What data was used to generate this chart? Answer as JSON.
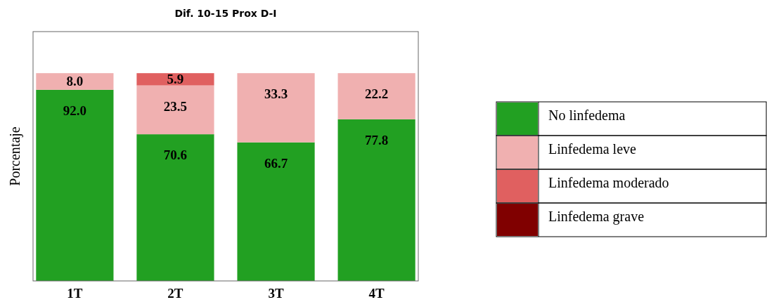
{
  "chart_data": {
    "type": "bar",
    "title": "Dif. 10-15 Prox D-I",
    "ylabel": "Porcentaje",
    "categories": [
      "1T",
      "2T",
      "3T",
      "4T"
    ],
    "stacked": true,
    "ylim": [
      0,
      120
    ],
    "tick_labels": "x",
    "legend": "right",
    "grid": false,
    "series": [
      {
        "name": "No linfedema",
        "color": "#22a022",
        "values": [
          92.0,
          70.6,
          66.7,
          77.8
        ],
        "value_labels": [
          "92.0",
          "70.6",
          "66.7",
          "77.8"
        ]
      },
      {
        "name": "Linfedema leve",
        "color": "#f0b0b0",
        "values": [
          8.0,
          23.5,
          33.3,
          22.2
        ],
        "value_labels": [
          "8.0",
          "23.5",
          "33.3",
          "22.2"
        ]
      },
      {
        "name": "Linfedema moderado",
        "color": "#e06060",
        "values": [
          0,
          5.9,
          0,
          0
        ],
        "value_labels": [
          null,
          "5.9",
          null,
          null
        ]
      },
      {
        "name": "Linfedema grave",
        "color": "#800000",
        "values": [
          0,
          0,
          0,
          0
        ],
        "value_labels": [
          null,
          null,
          null,
          null
        ]
      }
    ]
  }
}
